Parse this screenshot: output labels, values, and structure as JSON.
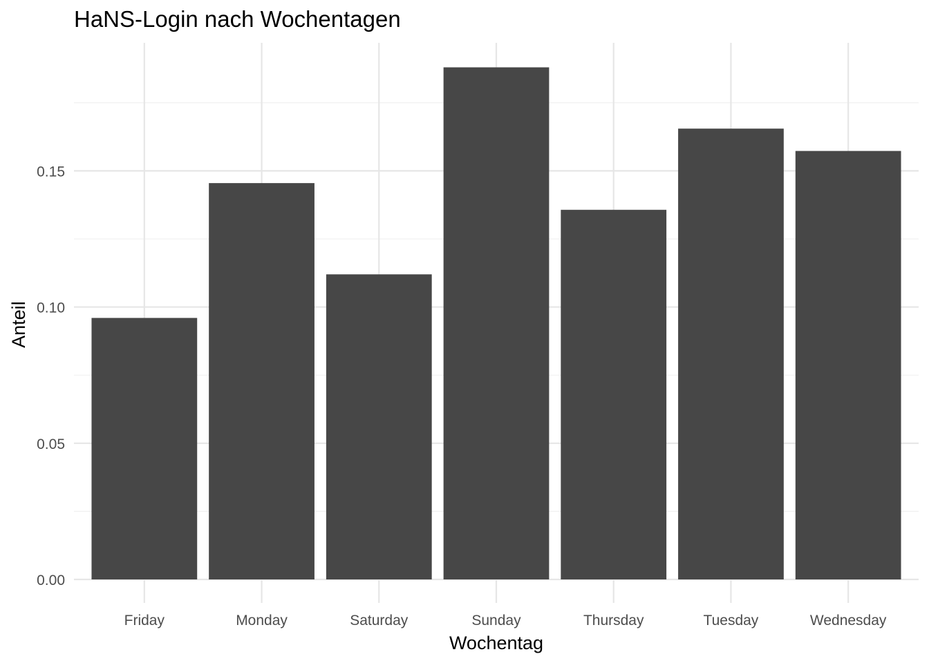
{
  "chart_data": {
    "type": "bar",
    "title": "HaNS-Login nach Wochentagen",
    "xlabel": "Wochentag",
    "ylabel": "Anteil",
    "categories": [
      "Friday",
      "Monday",
      "Saturday",
      "Sunday",
      "Thursday",
      "Tuesday",
      "Wednesday"
    ],
    "values": [
      0.096,
      0.1455,
      0.112,
      0.188,
      0.1357,
      0.1655,
      0.1573
    ],
    "ylim": [
      0,
      0.197
    ],
    "yticks": [
      0.0,
      0.05,
      0.1,
      0.15
    ],
    "ytick_labels": [
      "0.00",
      "0.05",
      "0.10",
      "0.15"
    ],
    "grid": true,
    "bar_color": "#474747",
    "grid_color": "#e6e6e6"
  }
}
